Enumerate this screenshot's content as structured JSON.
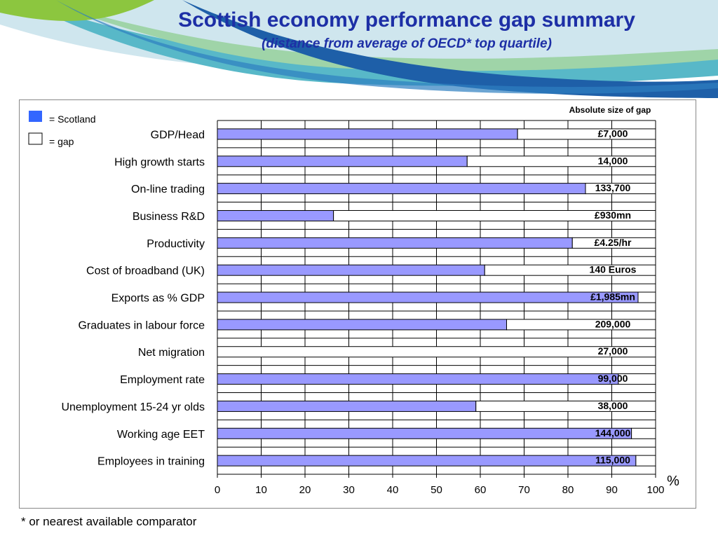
{
  "title": "Scottish economy performance gap summary",
  "subtitle": "(distance from average of OECD* top quartile)",
  "footnote": "* or nearest available comparator",
  "colors": {
    "scotland": "#9999ff",
    "gap": "#ffffff",
    "title": "#1d2fa6",
    "legend_swatch": "#3366ff"
  },
  "chart_data": {
    "type": "bar",
    "orientation": "horizontal",
    "stacked": true,
    "categories": [
      "GDP/Head",
      "High growth starts",
      "On-line trading",
      "Business R&D",
      "Productivity",
      "Cost of broadband (UK)",
      "Exports as % GDP",
      "Graduates in labour force",
      "Net migration",
      "Employment rate",
      "Unemployment 15-24 yr olds",
      "Working age EET",
      "Employees in training"
    ],
    "series": [
      {
        "name": "= Scotland",
        "values": [
          68.5,
          57,
          84,
          26.5,
          81,
          61,
          96,
          66,
          0,
          91.5,
          59,
          94.5,
          95.5
        ]
      },
      {
        "name": "= gap",
        "values": [
          31.5,
          43,
          16,
          73.5,
          19,
          39,
          4,
          34,
          100,
          8.5,
          41,
          5.5,
          4.5
        ]
      }
    ],
    "gap_labels": [
      "£7,000",
      "14,000",
      "133,700",
      "£930mn",
      "£4.25/hr",
      "140 Euros",
      "£1,985mn",
      "209,000",
      "27,000",
      "99,000",
      "38,000",
      "144,000",
      "115,000"
    ],
    "annotation": "Absolute size of gap",
    "xticks": [
      "0",
      "10",
      "20",
      "30",
      "40",
      "50",
      "60",
      "70",
      "80",
      "90",
      "100"
    ],
    "xlim": [
      0,
      100
    ],
    "xlabel": "%",
    "grid": true,
    "legend_position": "top-left"
  }
}
